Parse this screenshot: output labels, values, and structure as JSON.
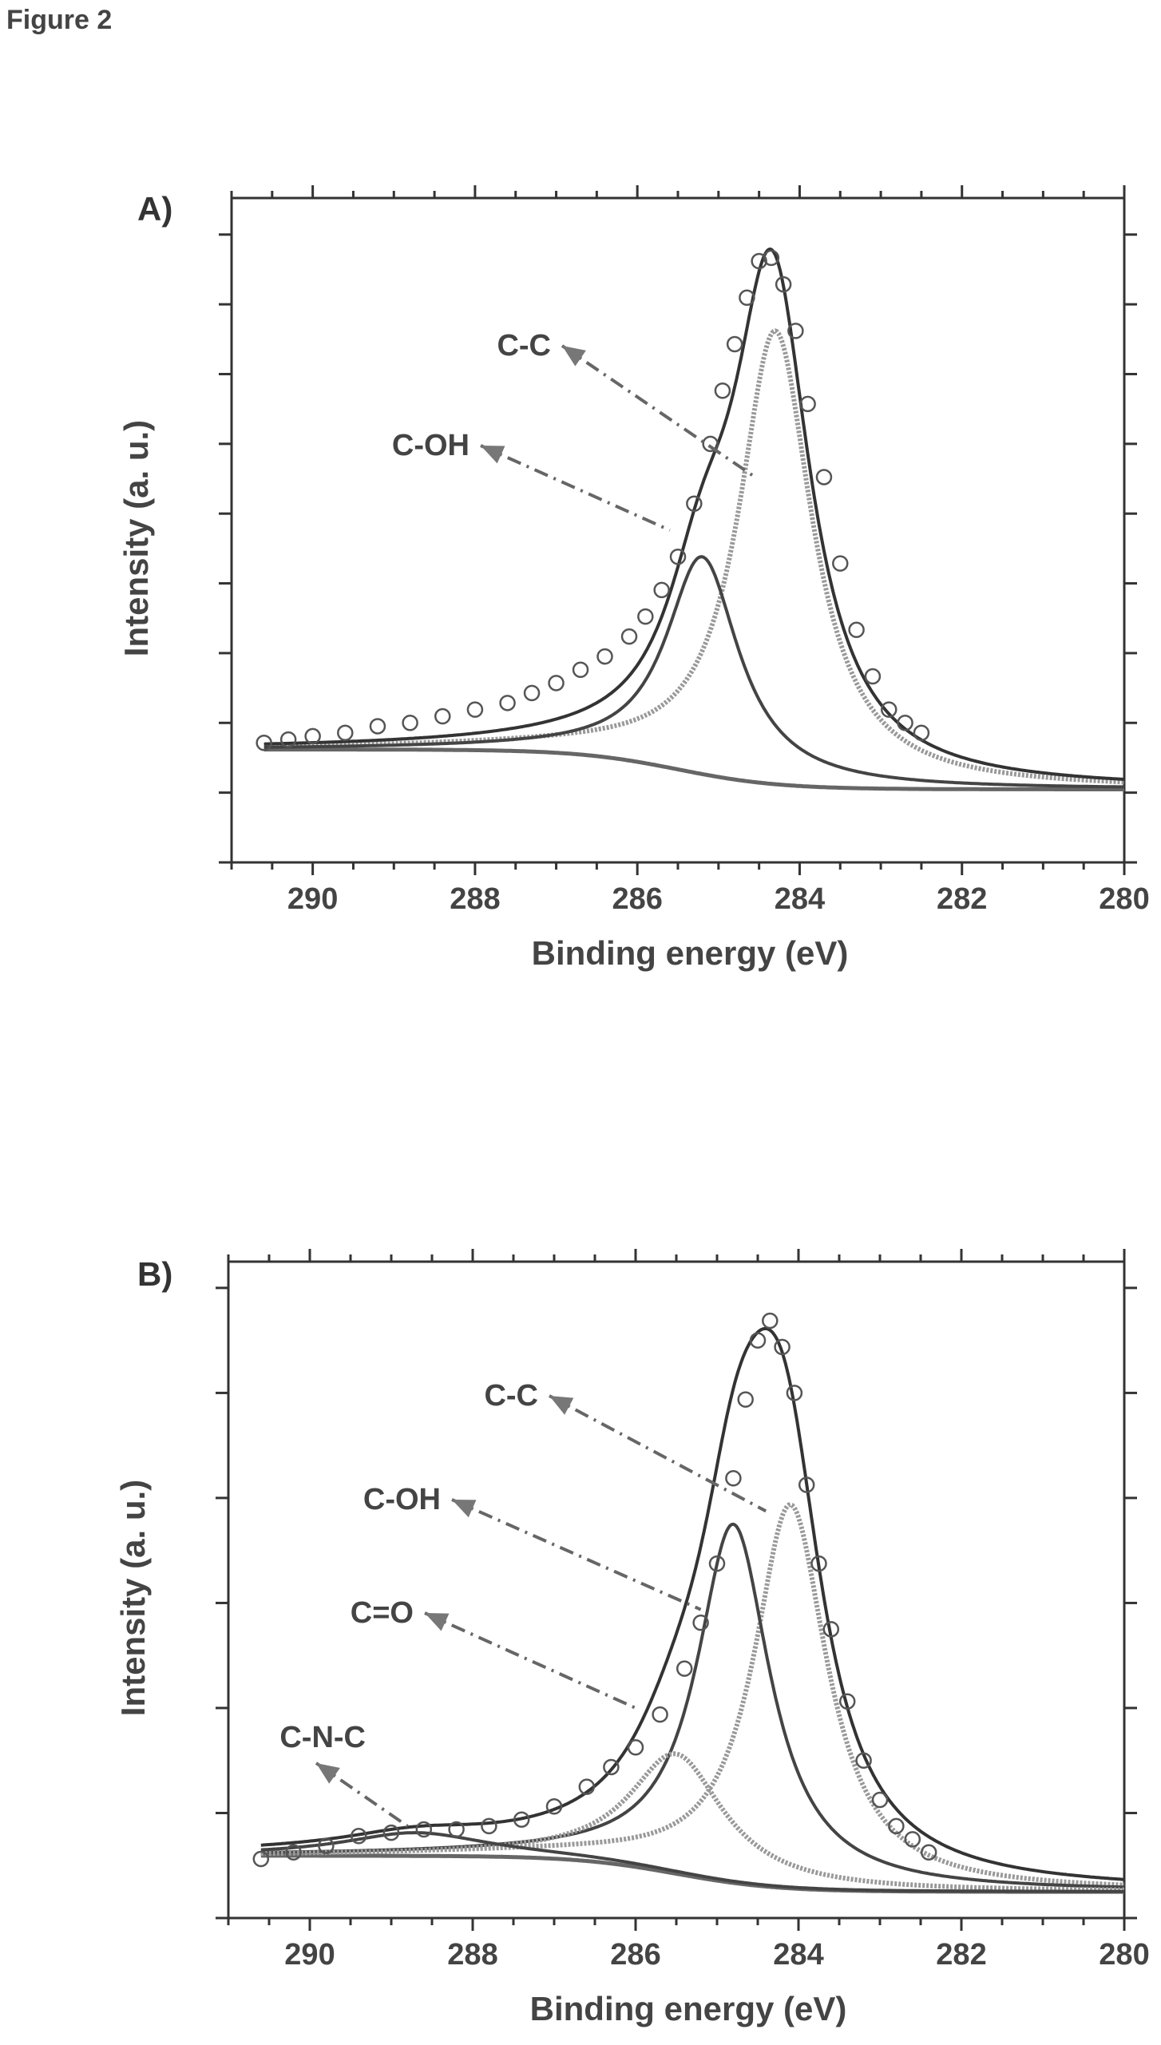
{
  "figure_caption": "Figure 2",
  "chart_data": [
    {
      "type": "line",
      "panel_label": "A)",
      "xlabel": "Binding energy (eV)",
      "ylabel": "Intensity (a. u.)",
      "xlim": [
        291,
        280
      ],
      "x_reversed": true,
      "ylim": [
        0,
        100
      ],
      "xticks": [
        290,
        288,
        286,
        284,
        282,
        280
      ],
      "xtick_labels": [
        "290",
        "288",
        "286",
        "284",
        "282",
        "280"
      ],
      "yticks": [
        0,
        10.5,
        21,
        31.5,
        42,
        52.5,
        63,
        73.5,
        84,
        94.5
      ],
      "grid": false,
      "series": [
        {
          "role": "data",
          "x": [
            290.6,
            290.3,
            290.0,
            289.6,
            289.2,
            288.8,
            288.4,
            288.0,
            287.6,
            287.3,
            287.0,
            286.7,
            286.4,
            286.1,
            285.9,
            285.7,
            285.5,
            285.3,
            285.1,
            284.95,
            284.8,
            284.65,
            284.5,
            284.35,
            284.2,
            284.05,
            283.9,
            283.7,
            283.5,
            283.3,
            283.1,
            282.9,
            282.7,
            282.5
          ],
          "y": [
            18,
            18.5,
            19,
            19.5,
            20.5,
            21,
            22,
            23,
            24,
            25.5,
            27,
            29,
            31,
            34,
            37,
            41,
            46,
            54,
            63,
            71,
            78,
            85,
            90.5,
            91,
            87,
            80,
            69,
            58,
            45,
            35,
            28,
            23,
            21,
            19.5
          ]
        },
        {
          "role": "envelope",
          "center": 284.4,
          "amp": 93.5
        },
        {
          "role": "component",
          "label": "C-C",
          "center": 284.3,
          "amp": 80
        },
        {
          "role": "component",
          "label": "C-OH",
          "center": 285.2,
          "amp": 46
        },
        {
          "role": "background",
          "x0": 290.6,
          "x1": 280,
          "y0": 17,
          "y1": 11
        }
      ],
      "annotations": [
        {
          "text": "C-C",
          "target_x": 284.55,
          "target_y": 58
        },
        {
          "text": "C-OH",
          "target_x": 285.6,
          "target_y": 50
        }
      ]
    },
    {
      "type": "line",
      "panel_label": "B)",
      "xlabel": "Binding energy (eV)",
      "ylabel": "Intensity (a. u.)",
      "xlim": [
        291,
        280
      ],
      "x_reversed": true,
      "ylim": [
        0,
        100
      ],
      "xticks": [
        290,
        288,
        286,
        284,
        282,
        280
      ],
      "xtick_labels": [
        "290",
        "288",
        "286",
        "284",
        "282",
        "280"
      ],
      "yticks": [
        0,
        16,
        32,
        48,
        64,
        80,
        96
      ],
      "grid": false,
      "series": [
        {
          "role": "data",
          "x": [
            290.6,
            290.2,
            289.8,
            289.4,
            289.0,
            288.6,
            288.2,
            287.8,
            287.4,
            287.0,
            286.6,
            286.3,
            286.0,
            285.7,
            285.4,
            285.2,
            285.0,
            284.8,
            284.65,
            284.5,
            284.35,
            284.2,
            284.05,
            283.9,
            283.75,
            283.6,
            283.4,
            283.2,
            283.0,
            282.8,
            282.6,
            282.4
          ],
          "y": [
            9,
            10,
            11,
            12.5,
            13,
            13.5,
            13.5,
            14,
            15,
            17,
            20,
            23,
            26,
            31,
            38,
            45,
            54,
            67,
            79,
            88,
            91,
            87,
            80,
            66,
            54,
            44,
            33,
            24,
            18,
            14,
            12,
            10
          ]
        },
        {
          "role": "envelope",
          "center": 284.4,
          "amp": 90
        },
        {
          "role": "component",
          "label": "C-C",
          "center": 284.1,
          "amp": 63
        },
        {
          "role": "component",
          "label": "C-OH",
          "center": 284.8,
          "amp": 60
        },
        {
          "role": "component",
          "label": "C=O",
          "center": 285.5,
          "amp": 25
        },
        {
          "role": "component",
          "label": "C-N-C",
          "center": 288.7,
          "amp": 13
        },
        {
          "role": "background",
          "x0": 290.6,
          "x1": 280,
          "y0": 9.5,
          "y1": 4
        }
      ],
      "annotations": [
        {
          "text": "C-C",
          "target_x": 284.4,
          "target_y": 62
        },
        {
          "text": "C-OH",
          "target_x": 285.2,
          "target_y": 47
        },
        {
          "text": "C=O",
          "target_x": 286.0,
          "target_y": 32
        },
        {
          "text": "C-N-C",
          "target_x": 288.8,
          "target_y": 14
        }
      ]
    }
  ]
}
